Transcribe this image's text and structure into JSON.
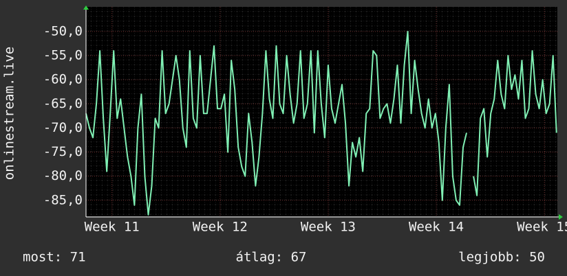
{
  "chart_data": {
    "type": "line",
    "y_label": "onlinestream.live",
    "ylim": [
      -88.3,
      -44.9
    ],
    "yticks": [
      {
        "value": -50,
        "label": "-50,0"
      },
      {
        "value": -55,
        "label": "-55,0"
      },
      {
        "value": -60,
        "label": "-60,0"
      },
      {
        "value": -65,
        "label": "-65,0"
      },
      {
        "value": -70,
        "label": "-70,0"
      },
      {
        "value": -75,
        "label": "-75,0"
      },
      {
        "value": -80,
        "label": "-80,0"
      },
      {
        "value": -85,
        "label": "-85,0"
      }
    ],
    "xlim": [
      10.76,
      15.12
    ],
    "xticks": [
      {
        "value": 11,
        "label": "Week 11"
      },
      {
        "value": 12,
        "label": "Week 12"
      },
      {
        "value": 13,
        "label": "Week 13"
      },
      {
        "value": 14,
        "label": "Week 14"
      },
      {
        "value": 15,
        "label": "Week 15"
      }
    ],
    "grid": true,
    "x": [
      10.76,
      10.792,
      10.824,
      10.856,
      10.888,
      10.92,
      10.952,
      10.984,
      11.016,
      11.048,
      11.08,
      11.112,
      11.144,
      11.176,
      11.208,
      11.24,
      11.272,
      11.304,
      11.336,
      11.368,
      11.4,
      11.432,
      11.464,
      11.496,
      11.528,
      11.56,
      11.592,
      11.624,
      11.656,
      11.688,
      11.72,
      11.752,
      11.784,
      11.816,
      11.848,
      11.88,
      11.912,
      11.944,
      11.976,
      12.008,
      12.04,
      12.072,
      12.104,
      12.136,
      12.168,
      12.2,
      12.232,
      12.264,
      12.296,
      12.328,
      12.36,
      12.392,
      12.424,
      12.456,
      12.488,
      12.52,
      12.552,
      12.584,
      12.616,
      12.648,
      12.68,
      12.712,
      12.744,
      12.776,
      12.808,
      12.84,
      12.872,
      12.904,
      12.936,
      12.968,
      13,
      13.032,
      13.064,
      13.096,
      13.128,
      13.16,
      13.192,
      13.224,
      13.256,
      13.288,
      13.32,
      13.352,
      13.384,
      13.416,
      13.448,
      13.48,
      13.512,
      13.544,
      13.576,
      13.608,
      13.64,
      13.672,
      13.704,
      13.736,
      13.768,
      13.8,
      13.832,
      13.864,
      13.896,
      13.928,
      13.96,
      13.992,
      14.024,
      14.056,
      14.088,
      14.12,
      14.152,
      14.184,
      14.216,
      14.248,
      14.28,
      14.312,
      14.344,
      14.376,
      14.408,
      14.44,
      14.472,
      14.504,
      14.536,
      14.568,
      14.6,
      14.632,
      14.664,
      14.696,
      14.728,
      14.76,
      14.792,
      14.824,
      14.856,
      14.888,
      14.92,
      14.952,
      14.984,
      15.016,
      15.048,
      15.08,
      15.112
    ],
    "series": [
      {
        "color": "#80f0b4",
        "values": [
          -67,
          -70,
          -72,
          -65,
          -54,
          -68,
          -79,
          -67,
          -54,
          -68,
          -64,
          -70,
          -76,
          -80,
          -86,
          -70,
          -63,
          -80,
          -88,
          -82,
          -68,
          -70,
          -54,
          -67,
          -65,
          -60,
          -55,
          -60,
          -70,
          -74,
          -54,
          -68,
          -70,
          -55,
          -67,
          -67,
          -60,
          -53,
          -66,
          -66,
          -63,
          -75,
          -56,
          -62,
          -74,
          -78,
          -80,
          -67,
          -73,
          -82,
          -76,
          -67,
          -54,
          -64,
          -68,
          -53,
          -65,
          -67,
          -55,
          -63,
          -69,
          -65,
          -54,
          -68,
          -65,
          -54,
          -71,
          -54,
          -65,
          -72,
          -57,
          -66,
          -69,
          -65,
          -61,
          -69,
          -82,
          -73,
          -76,
          -72,
          -79,
          -67,
          -66,
          -54,
          -55,
          -68,
          -66,
          -65,
          -69,
          -64,
          -57,
          -69,
          -57,
          -50,
          -67,
          -56,
          -62,
          -67,
          -70,
          -64,
          -70,
          -67,
          -73,
          -85,
          -70,
          -61,
          -80,
          -85,
          -86,
          -74,
          -71,
          null,
          -80,
          -84,
          -68,
          -66,
          -76,
          -67,
          -64,
          -56,
          -63,
          -66,
          -55,
          -62,
          -59,
          -64,
          -56,
          -68,
          -66,
          -54,
          -63,
          -66,
          -60,
          -67,
          -65,
          -55,
          -71
        ]
      }
    ],
    "footer": [
      "most: 71",
      "átlag: 67",
      "legjobb: 50"
    ]
  }
}
